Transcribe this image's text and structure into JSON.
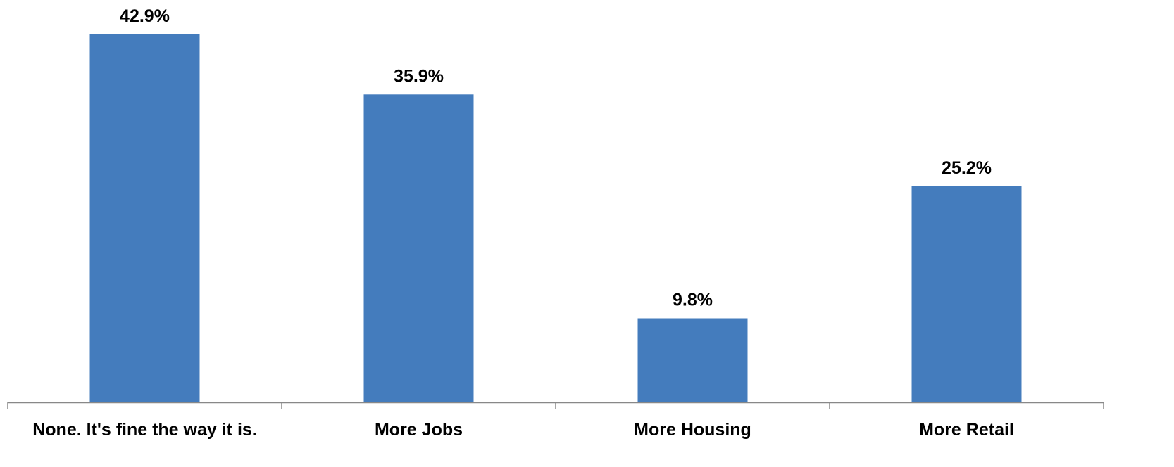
{
  "chart_data": {
    "type": "bar",
    "categories": [
      "None. It's fine the way it is.",
      "More Jobs",
      "More Housing",
      "More Retail"
    ],
    "values": [
      42.9,
      35.9,
      9.8,
      25.2
    ],
    "value_labels": [
      "42.9%",
      "35.9%",
      "9.8%",
      "25.2%"
    ],
    "title": "",
    "xlabel": "",
    "ylabel": "",
    "ylim": [
      0,
      42.9
    ],
    "grid": false,
    "legend": "none",
    "colors": {
      "bar": "#447cbd",
      "axis": "#888888",
      "text": "#000000"
    }
  }
}
